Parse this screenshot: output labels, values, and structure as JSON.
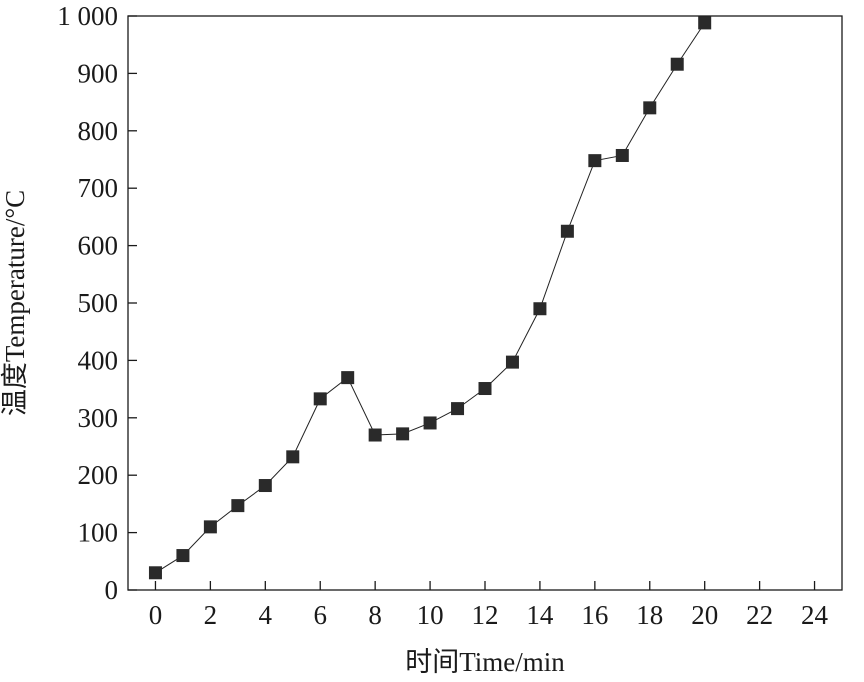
{
  "chart_data": {
    "type": "line",
    "title": "",
    "xlabel": "时间Time/min",
    "ylabel": "温度Temperature/°C",
    "xlim": [
      -1,
      25
    ],
    "ylim": [
      0,
      1000
    ],
    "x_ticks": [
      0,
      2,
      4,
      6,
      8,
      10,
      12,
      14,
      16,
      18,
      20,
      22,
      24
    ],
    "y_ticks": [
      0,
      100,
      200,
      300,
      400,
      500,
      600,
      700,
      800,
      900,
      1000
    ],
    "x_tick_labels": [
      "0",
      "2",
      "4",
      "6",
      "8",
      "10",
      "12",
      "14",
      "16",
      "18",
      "20",
      "22",
      "24"
    ],
    "y_tick_labels": [
      "0",
      "100",
      "200",
      "300",
      "400",
      "500",
      "600",
      "700",
      "800",
      "900",
      "1 000"
    ],
    "grid": false,
    "marker": "square",
    "series": [
      {
        "x": [
          0,
          1,
          2,
          3,
          4,
          5,
          6,
          7,
          8,
          9,
          10,
          11,
          12,
          13,
          14,
          15,
          16,
          17,
          18,
          19,
          20
        ],
        "y": [
          30,
          60,
          110,
          147,
          182,
          232,
          333,
          370,
          270,
          272,
          291,
          316,
          351,
          397,
          490,
          625,
          748,
          757,
          840,
          916,
          988
        ]
      }
    ]
  }
}
